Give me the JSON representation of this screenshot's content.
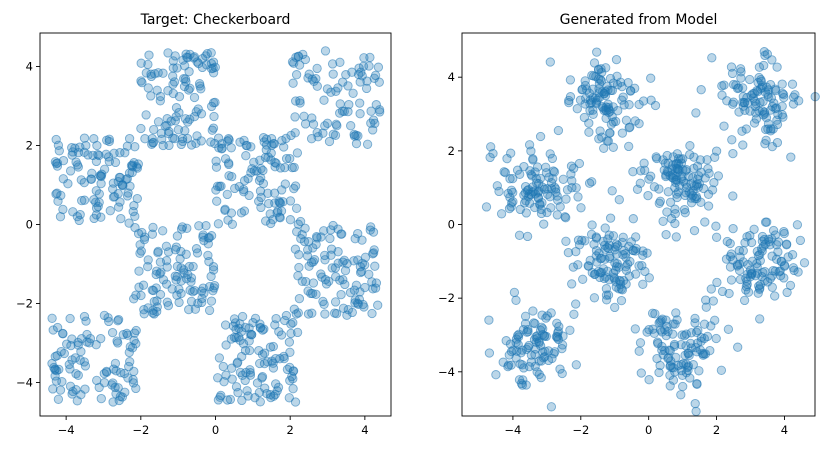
{
  "chart_data": [
    {
      "type": "scatter",
      "title": "Target: Checkerboard",
      "xlim": [
        -4.7,
        4.7
      ],
      "ylim": [
        -4.85,
        4.85
      ],
      "xticks": [
        -4,
        -2,
        0,
        2,
        4
      ],
      "yticks": [
        -4,
        -2,
        0,
        2,
        4
      ],
      "xtick_labels": [
        "−4",
        "−2",
        "0",
        "2",
        "4"
      ],
      "ytick_labels": [
        "−4",
        "−2",
        "0",
        "2",
        "4"
      ],
      "grid": false,
      "marker_color": "#1f77b4",
      "marker_alpha": 0.3,
      "clusters": [
        {
          "x": [
            -2.0,
            0.0
          ],
          "y": [
            2.0,
            4.4
          ],
          "n": 110
        },
        {
          "x": [
            2.0,
            4.4
          ],
          "y": [
            2.0,
            4.4
          ],
          "n": 90
        },
        {
          "x": [
            -4.3,
            -2.0
          ],
          "y": [
            0.0,
            2.2
          ],
          "n": 110
        },
        {
          "x": [
            0.0,
            2.3
          ],
          "y": [
            0.0,
            2.2
          ],
          "n": 110
        },
        {
          "x": [
            -2.2,
            0.0
          ],
          "y": [
            -2.3,
            0.0
          ],
          "n": 110
        },
        {
          "x": [
            2.1,
            4.4
          ],
          "y": [
            -2.3,
            0.0
          ],
          "n": 110
        },
        {
          "x": [
            -4.4,
            -2.1
          ],
          "y": [
            -4.5,
            -2.3
          ],
          "n": 100
        },
        {
          "x": [
            0.0,
            2.2
          ],
          "y": [
            -4.5,
            -2.3
          ],
          "n": 110
        }
      ]
    },
    {
      "type": "scatter",
      "title": "Generated from Model",
      "xlim": [
        -5.5,
        4.9
      ],
      "ylim": [
        -5.2,
        5.2
      ],
      "xticks": [
        -4,
        -2,
        0,
        2,
        4
      ],
      "yticks": [
        -4,
        -2,
        0,
        2,
        4
      ],
      "xtick_labels": [
        "−4",
        "−2",
        "0",
        "2",
        "4"
      ],
      "ytick_labels": [
        "−4",
        "−2",
        "0",
        "2",
        "4"
      ],
      "grid": false,
      "marker_color": "#1f77b4",
      "marker_alpha": 0.3,
      "clusters": [
        {
          "cx": -1.2,
          "cy": 3.3,
          "sx": 0.55,
          "sy": 0.65,
          "n": 110
        },
        {
          "cx": 3.2,
          "cy": 3.3,
          "sx": 0.6,
          "sy": 0.6,
          "n": 110
        },
        {
          "cx": -3.2,
          "cy": 1.0,
          "sx": 0.65,
          "sy": 0.6,
          "n": 110
        },
        {
          "cx": 1.0,
          "cy": 1.2,
          "sx": 0.65,
          "sy": 0.55,
          "n": 120
        },
        {
          "cx": -1.2,
          "cy": -1.0,
          "sx": 0.6,
          "sy": 0.6,
          "n": 110
        },
        {
          "cx": 3.1,
          "cy": -1.0,
          "sx": 0.6,
          "sy": 0.6,
          "n": 110
        },
        {
          "cx": -3.3,
          "cy": -3.3,
          "sx": 0.6,
          "sy": 0.55,
          "n": 100
        },
        {
          "cx": 1.0,
          "cy": -3.3,
          "sx": 0.65,
          "sy": 0.55,
          "n": 110
        }
      ]
    }
  ]
}
